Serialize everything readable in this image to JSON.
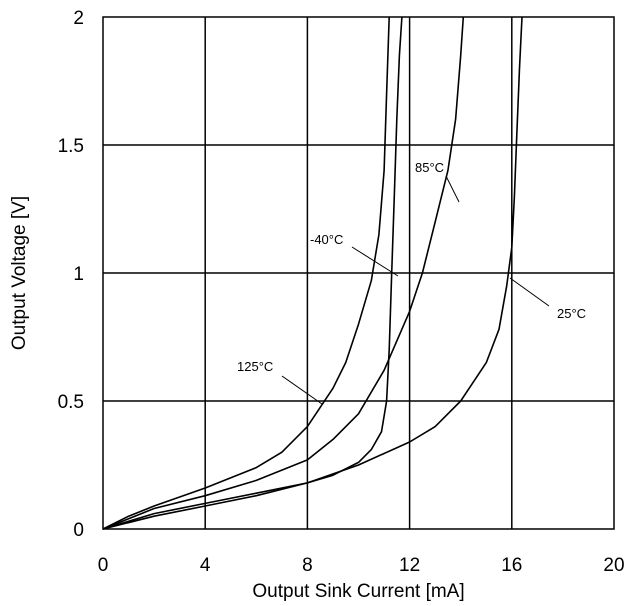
{
  "chart_data": {
    "type": "line",
    "title": "",
    "xlabel": "Output Sink Current [mA]",
    "ylabel": "Output Voltage [V]",
    "xlim": [
      0,
      20
    ],
    "ylim": [
      0,
      2
    ],
    "grid": true,
    "x_ticks": [
      "0",
      "4",
      "8",
      "12",
      "16",
      "20"
    ],
    "y_ticks": [
      "0",
      "0.5",
      "1",
      "1.5",
      "2"
    ],
    "series": [
      {
        "name": "-40°C",
        "points": [
          [
            0,
            0
          ],
          [
            1,
            0.03
          ],
          [
            2,
            0.06
          ],
          [
            4,
            0.1
          ],
          [
            6,
            0.14
          ],
          [
            8,
            0.18
          ],
          [
            9,
            0.21
          ],
          [
            10,
            0.26
          ],
          [
            10.5,
            0.31
          ],
          [
            10.9,
            0.38
          ],
          [
            11.1,
            0.5
          ],
          [
            11.2,
            0.7
          ],
          [
            11.3,
            1.0
          ],
          [
            11.4,
            1.3
          ],
          [
            11.5,
            1.6
          ],
          [
            11.6,
            1.85
          ],
          [
            11.7,
            2.0
          ]
        ]
      },
      {
        "name": "125°C",
        "points": [
          [
            0,
            0
          ],
          [
            1,
            0.05
          ],
          [
            2,
            0.09
          ],
          [
            4,
            0.16
          ],
          [
            6,
            0.24
          ],
          [
            7,
            0.3
          ],
          [
            8,
            0.4
          ],
          [
            9,
            0.55
          ],
          [
            9.5,
            0.65
          ],
          [
            10,
            0.8
          ],
          [
            10.5,
            0.97
          ],
          [
            10.8,
            1.15
          ],
          [
            11,
            1.4
          ],
          [
            11.1,
            1.7
          ],
          [
            11.2,
            2.0
          ]
        ]
      },
      {
        "name": "85°C",
        "points": [
          [
            0,
            0
          ],
          [
            1,
            0.04
          ],
          [
            2,
            0.08
          ],
          [
            4,
            0.13
          ],
          [
            6,
            0.19
          ],
          [
            8,
            0.27
          ],
          [
            9,
            0.35
          ],
          [
            10,
            0.45
          ],
          [
            11,
            0.62
          ],
          [
            12,
            0.85
          ],
          [
            12.5,
            1.0
          ],
          [
            13,
            1.2
          ],
          [
            13.5,
            1.4
          ],
          [
            13.8,
            1.6
          ],
          [
            14,
            1.85
          ],
          [
            14.1,
            2.0
          ]
        ]
      },
      {
        "name": "25°C",
        "points": [
          [
            0,
            0
          ],
          [
            2,
            0.05
          ],
          [
            4,
            0.09
          ],
          [
            6,
            0.13
          ],
          [
            8,
            0.18
          ],
          [
            10,
            0.25
          ],
          [
            12,
            0.34
          ],
          [
            13,
            0.4
          ],
          [
            14,
            0.5
          ],
          [
            15,
            0.65
          ],
          [
            15.5,
            0.78
          ],
          [
            15.8,
            0.95
          ],
          [
            16,
            1.1
          ],
          [
            16.1,
            1.3
          ],
          [
            16.2,
            1.55
          ],
          [
            16.3,
            1.8
          ],
          [
            16.4,
            2.0
          ]
        ]
      }
    ]
  }
}
